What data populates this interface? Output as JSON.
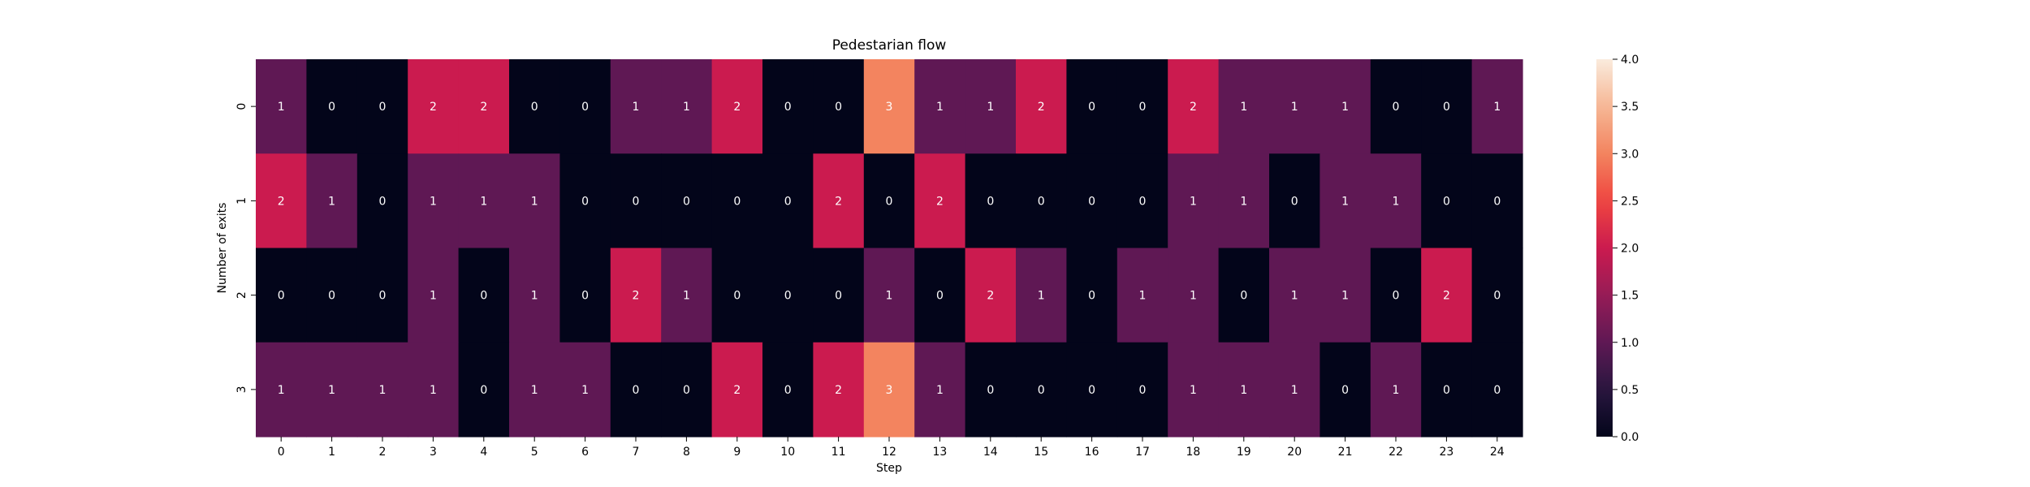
{
  "chart_data": {
    "type": "heatmap",
    "title": "Pedestarian flow",
    "xlabel": "Step",
    "ylabel": "Number of exits",
    "x_categories": [
      "0",
      "1",
      "2",
      "3",
      "4",
      "5",
      "6",
      "7",
      "8",
      "9",
      "10",
      "11",
      "12",
      "13",
      "14",
      "15",
      "16",
      "17",
      "18",
      "19",
      "20",
      "21",
      "22",
      "23",
      "24"
    ],
    "y_categories": [
      "0",
      "1",
      "2",
      "3"
    ],
    "values": [
      [
        1,
        0,
        0,
        2,
        2,
        0,
        0,
        1,
        1,
        2,
        0,
        0,
        3,
        1,
        1,
        2,
        0,
        0,
        2,
        1,
        1,
        1,
        0,
        0,
        1
      ],
      [
        2,
        1,
        0,
        1,
        1,
        1,
        0,
        0,
        0,
        0,
        0,
        2,
        0,
        2,
        0,
        0,
        0,
        0,
        1,
        1,
        0,
        1,
        1,
        0,
        0
      ],
      [
        0,
        0,
        0,
        1,
        0,
        1,
        0,
        2,
        1,
        0,
        0,
        0,
        1,
        0,
        2,
        1,
        0,
        1,
        1,
        0,
        1,
        1,
        0,
        2,
        0
      ],
      [
        1,
        1,
        1,
        1,
        0,
        1,
        1,
        0,
        0,
        2,
        0,
        2,
        3,
        1,
        0,
        0,
        0,
        0,
        1,
        1,
        1,
        0,
        1,
        0,
        0
      ]
    ],
    "colorbar": {
      "min": 0.0,
      "max": 4.0,
      "ticks": [
        "0.0",
        "0.5",
        "1.0",
        "1.5",
        "2.0",
        "2.5",
        "3.0",
        "3.5",
        "4.0"
      ],
      "colormap": "rocket"
    },
    "annotation_colors": {
      "text": "#ffffff"
    },
    "legend": "colorbar-right",
    "grid": false
  }
}
